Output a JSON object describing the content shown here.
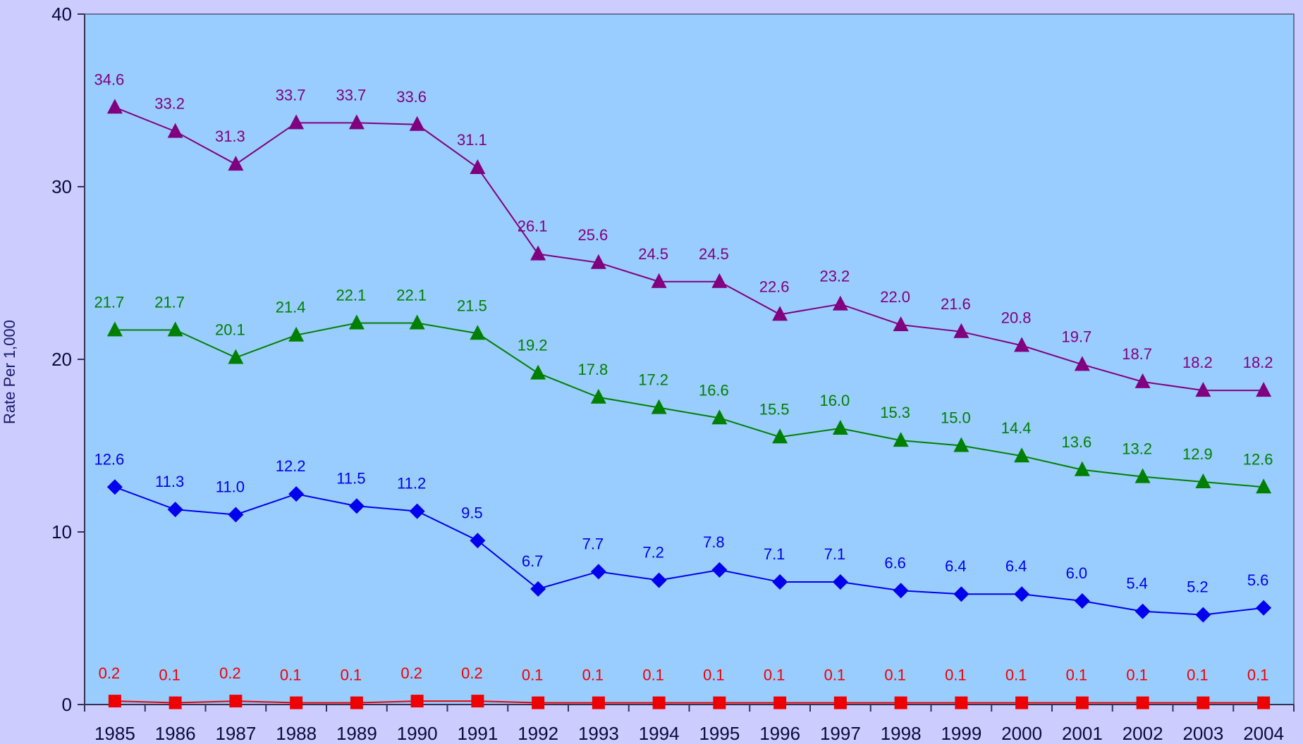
{
  "chart_data": {
    "type": "line",
    "title": "",
    "xlabel": "",
    "ylabel": "Rate Per 1,000",
    "x": [
      "1985",
      "1986",
      "1987",
      "1988",
      "1989",
      "1990",
      "1991",
      "1992",
      "1993",
      "1994",
      "1995",
      "1996",
      "1997",
      "1998",
      "1999",
      "2000",
      "2001",
      "2002",
      "2003",
      "2004"
    ],
    "ylim": [
      0,
      40
    ],
    "yticks": [
      "0",
      "10",
      "20",
      "30",
      "40"
    ],
    "grid": false,
    "legend": "none",
    "plot_background": "#99ccff",
    "series": [
      {
        "color": "#800080",
        "marker": "triangle",
        "values": [
          34.6,
          33.2,
          31.3,
          33.7,
          33.7,
          33.6,
          31.1,
          26.1,
          25.6,
          24.5,
          24.5,
          22.6,
          23.2,
          22.0,
          21.6,
          20.8,
          19.7,
          18.7,
          18.2,
          18.2
        ],
        "labels": [
          "34.6",
          "33.2",
          "31.3",
          "33.7",
          "33.7",
          "33.6",
          "31.1",
          "26.1",
          "25.6",
          "24.5",
          "24.5",
          "22.6",
          "23.2",
          "22.0",
          "21.6",
          "20.8",
          "19.7",
          "18.7",
          "18.2",
          "18.2"
        ]
      },
      {
        "color": "#008000",
        "marker": "triangle",
        "values": [
          21.7,
          21.7,
          20.1,
          21.4,
          22.1,
          22.1,
          21.5,
          19.2,
          17.8,
          17.2,
          16.6,
          15.5,
          16.0,
          15.3,
          15.0,
          14.4,
          13.6,
          13.2,
          12.9,
          12.6
        ],
        "labels": [
          "21.7",
          "21.7",
          "20.1",
          "21.4",
          "22.1",
          "22.1",
          "21.5",
          "19.2",
          "17.8",
          "17.2",
          "16.6",
          "15.5",
          "16.0",
          "15.3",
          "15.0",
          "14.4",
          "13.6",
          "13.2",
          "12.9",
          "12.6"
        ]
      },
      {
        "color": "#0000ee",
        "marker": "diamond",
        "values": [
          12.6,
          11.3,
          11.0,
          12.2,
          11.5,
          11.2,
          9.5,
          6.7,
          7.7,
          7.2,
          7.8,
          7.1,
          7.1,
          6.6,
          6.4,
          6.4,
          6.0,
          5.4,
          5.2,
          5.6
        ],
        "labels": [
          "12.6",
          "11.3",
          "11.0",
          "12.2",
          "11.5",
          "11.2",
          "9.5",
          "6.7",
          "7.7",
          "7.2",
          "7.8",
          "7.1",
          "7.1",
          "6.6",
          "6.4",
          "6.4",
          "6.0",
          "5.4",
          "5.2",
          "5.6"
        ]
      },
      {
        "color": "#ee0000",
        "marker": "square",
        "values": [
          0.2,
          0.1,
          0.2,
          0.1,
          0.1,
          0.2,
          0.2,
          0.1,
          0.1,
          0.1,
          0.1,
          0.1,
          0.1,
          0.1,
          0.1,
          0.1,
          0.1,
          0.1,
          0.1,
          0.1
        ],
        "labels": [
          "0.2",
          "0.1",
          "0.2",
          "0.1",
          "0.1",
          "0.2",
          "0.2",
          "0.1",
          "0.1",
          "0.1",
          "0.1",
          "0.1",
          "0.1",
          "0.1",
          "0.1",
          "0.1",
          "0.1",
          "0.1",
          "0.1",
          "0.1"
        ]
      }
    ]
  }
}
